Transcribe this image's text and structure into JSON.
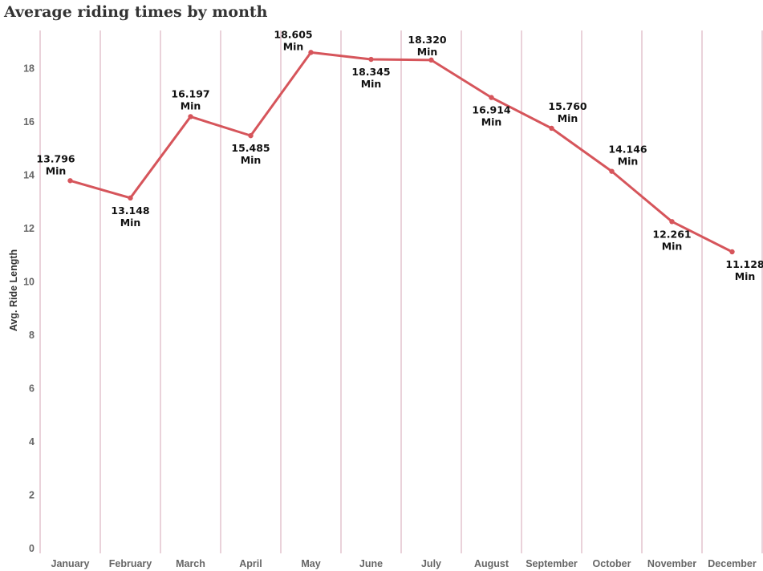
{
  "chart_data": {
    "type": "line",
    "title": "Average riding times by month",
    "xlabel": "",
    "ylabel": "Avg. Ride Length",
    "categories": [
      "January",
      "February",
      "March",
      "April",
      "May",
      "June",
      "July",
      "August",
      "September",
      "October",
      "November",
      "December"
    ],
    "series": [
      {
        "values": [
          13.796,
          13.148,
          16.197,
          15.485,
          18.605,
          18.345,
          18.32,
          16.914,
          15.76,
          14.146,
          12.261,
          11.128
        ],
        "data_labels": [
          "13.796",
          "13.148",
          "16.197",
          "15.485",
          "18.605",
          "18.345",
          "18.320",
          "16.914",
          "15.760",
          "14.146",
          "12.261",
          "11.128"
        ]
      }
    ],
    "data_label_unit": "Min",
    "ylim": [
      0,
      19
    ],
    "yticks": [
      0,
      2,
      4,
      6,
      8,
      10,
      12,
      14,
      16,
      18
    ],
    "grid": "vertical",
    "legend": "none",
    "colors": {
      "line": "#d6555b",
      "gridline": "#d4a6b4"
    }
  }
}
